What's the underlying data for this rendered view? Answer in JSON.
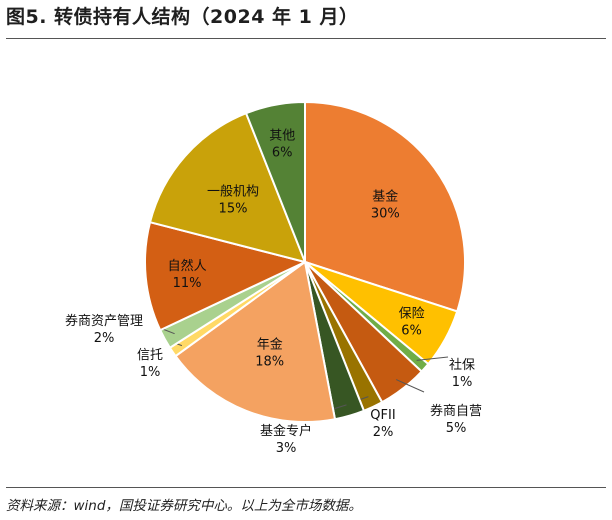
{
  "header": {
    "title": "图5. 转债持有人结构（2024 年 1 月）"
  },
  "footer": {
    "source": "资料来源：wind，国投证券研究中心。以上为全市场数据。"
  },
  "chart_data": {
    "type": "pie",
    "slices": [
      {
        "name": "基金",
        "value": 30,
        "label": "30%",
        "color": "#ED7D31"
      },
      {
        "name": "保险",
        "value": 6,
        "label": "6%",
        "color": "#FFC000"
      },
      {
        "name": "社保",
        "value": 1,
        "label": "1%",
        "color": "#70AD47"
      },
      {
        "name": "券商自营",
        "value": 5,
        "label": "5%",
        "color": "#C55A11"
      },
      {
        "name": "QFII",
        "value": 2,
        "label": "2%",
        "color": "#997300"
      },
      {
        "name": "基金专户",
        "value": 3,
        "label": "3%",
        "color": "#375623"
      },
      {
        "name": "年金",
        "value": 18,
        "label": "18%",
        "color": "#F4A261"
      },
      {
        "name": "信托",
        "value": 1,
        "label": "1%",
        "color": "#FFD966"
      },
      {
        "name": "券商资产管理",
        "value": 2,
        "label": "2%",
        "color": "#A9D18E"
      },
      {
        "name": "自然人",
        "value": 11,
        "label": "11%",
        "color": "#D35F14"
      },
      {
        "name": "一般机构",
        "value": 15,
        "label": "15%",
        "color": "#C9A20A"
      },
      {
        "name": "其他",
        "value": 6,
        "label": "6%",
        "color": "#548235"
      }
    ]
  }
}
